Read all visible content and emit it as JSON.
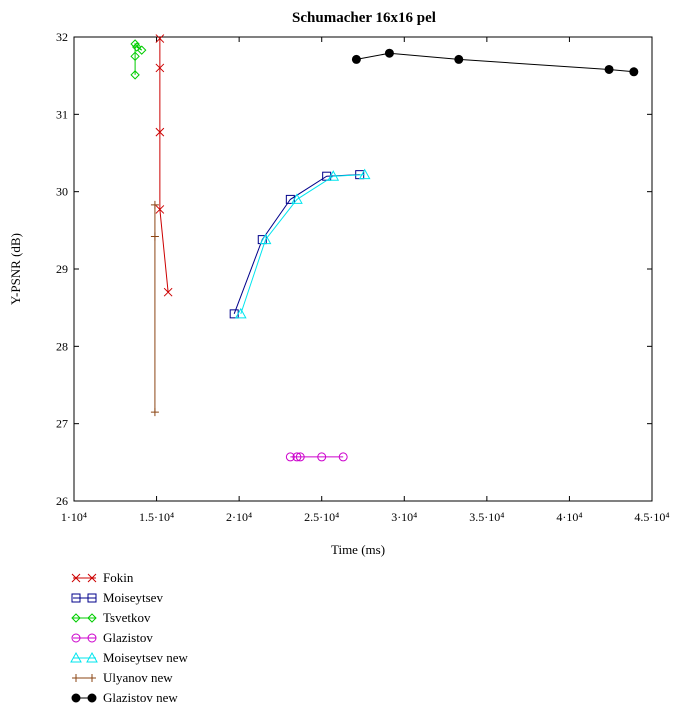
{
  "chart_data": {
    "type": "line",
    "title": "Schumacher 16x16 pel",
    "xlabel": "Time (ms)",
    "ylabel": "Y-PSNR (dB)",
    "xlim": [
      10000,
      45000
    ],
    "ylim": [
      26,
      32
    ],
    "x_ticks": [
      {
        "value": 10000,
        "label": "1·10⁴"
      },
      {
        "value": 15000,
        "label": "1.5·10⁴"
      },
      {
        "value": 20000,
        "label": "2·10⁴"
      },
      {
        "value": 25000,
        "label": "2.5·10⁴"
      },
      {
        "value": 30000,
        "label": "3·10⁴"
      },
      {
        "value": 35000,
        "label": "3.5·10⁴"
      },
      {
        "value": 40000,
        "label": "4·10⁴"
      },
      {
        "value": 45000,
        "label": "4.5·10⁴"
      }
    ],
    "y_ticks": [
      {
        "value": 26,
        "label": "26"
      },
      {
        "value": 27,
        "label": "27"
      },
      {
        "value": 28,
        "label": "28"
      },
      {
        "value": 29,
        "label": "29"
      },
      {
        "value": 30,
        "label": "30"
      },
      {
        "value": 31,
        "label": "31"
      },
      {
        "value": 32,
        "label": "32"
      }
    ],
    "grid": false,
    "legend_position": "bottom-left",
    "series": [
      {
        "name": "Fokin",
        "color": "#cc0000",
        "marker": "x",
        "x": [
          15200,
          15200,
          15200,
          15200,
          15700
        ],
        "y": [
          31.98,
          31.6,
          30.77,
          29.77,
          28.7
        ]
      },
      {
        "name": "Moiseytsev",
        "color": "#00008b",
        "marker": "square",
        "x": [
          19700,
          21400,
          23100,
          25300,
          27300
        ],
        "y": [
          28.42,
          29.38,
          29.9,
          30.2,
          30.22
        ]
      },
      {
        "name": "Tsvetkov",
        "color": "#00cc00",
        "marker": "diamond",
        "x": [
          13700,
          13700,
          13700,
          14100,
          13800
        ],
        "y": [
          31.51,
          31.75,
          31.91,
          31.83,
          31.87
        ]
      },
      {
        "name": "Glazistov",
        "color": "#cc00cc",
        "marker": "circle",
        "x": [
          23100,
          23500,
          23700,
          25000,
          26300
        ],
        "y": [
          26.57,
          26.57,
          26.57,
          26.57,
          26.57
        ]
      },
      {
        "name": "Moiseytsev new",
        "color": "#00e5ee",
        "marker": "triangle",
        "x": [
          20100,
          21600,
          23500,
          25700,
          27600
        ],
        "y": [
          28.42,
          29.38,
          29.9,
          30.2,
          30.22
        ]
      },
      {
        "name": "Ulyanov new",
        "color": "#8b4513",
        "marker": "plus",
        "x": [
          14900,
          14900,
          14900
        ],
        "y": [
          27.15,
          29.42,
          29.83
        ]
      },
      {
        "name": "Glazistov new",
        "color": "#000000",
        "marker": "filled-circle",
        "x": [
          27100,
          29100,
          33300,
          42400,
          43900
        ],
        "y": [
          31.71,
          31.79,
          31.71,
          31.58,
          31.55
        ]
      }
    ]
  }
}
